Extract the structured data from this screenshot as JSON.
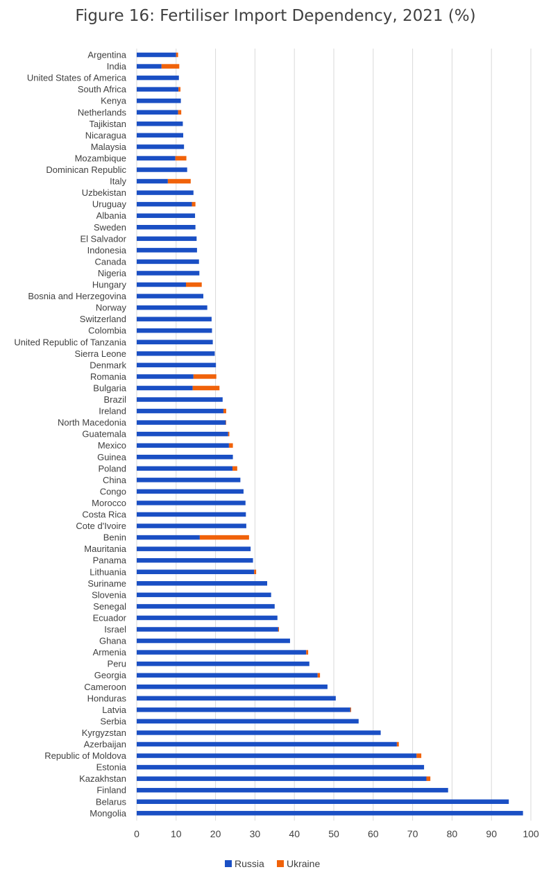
{
  "chart_data": {
    "type": "bar",
    "orientation": "horizontal",
    "stacked": true,
    "title": "Figure 16: Fertiliser Import Dependency, 2021 (%)",
    "xlim": [
      0,
      100
    ],
    "x_ticks": [
      0,
      10,
      20,
      30,
      40,
      50,
      60,
      70,
      80,
      90,
      100
    ],
    "grid": "vertical",
    "legend_position": "bottom",
    "colors": {
      "Russia": "#1a4fc4",
      "Ukraine": "#f0620a"
    },
    "categories": [
      "Argentina",
      "India",
      "United States of America",
      "South Africa",
      "Kenya",
      "Netherlands",
      "Tajikistan",
      "Nicaragua",
      "Malaysia",
      "Mozambique",
      "Dominican Republic",
      "Italy",
      "Uzbekistan",
      "Uruguay",
      "Albania",
      "Sweden",
      "El Salvador",
      "Indonesia",
      "Canada",
      "Nigeria",
      "Hungary",
      "Bosnia and Herzegovina",
      "Norway",
      "Switzerland",
      "Colombia",
      "United Republic of Tanzania",
      "Sierra Leone",
      "Denmark",
      "Romania",
      "Bulgaria",
      "Brazil",
      "Ireland",
      "North Macedonia",
      "Guatemala",
      "Mexico",
      "Guinea",
      "Poland",
      "China",
      "Congo",
      "Morocco",
      "Costa Rica",
      "Cote d'Ivoire",
      "Benin",
      "Mauritania",
      "Panama",
      "Lithuania",
      "Suriname",
      "Slovenia",
      "Senegal",
      "Ecuador",
      "Israel",
      "Ghana",
      "Armenia",
      "Peru",
      "Georgia",
      "Cameroon",
      "Honduras",
      "Latvia",
      "Serbia",
      "Kyrgyzstan",
      "Azerbaijan",
      "Republic of Moldova",
      "Estonia",
      "Kazakhstan",
      "Finland",
      "Belarus",
      "Mongolia"
    ],
    "series": [
      {
        "name": "Russia",
        "values": [
          10,
          6.3,
          10.7,
          10.6,
          11.2,
          10.5,
          11.7,
          11.8,
          12,
          9.8,
          12.8,
          7.9,
          14.4,
          14,
          14.8,
          14.9,
          15.2,
          15.3,
          15.8,
          15.9,
          12.5,
          16.9,
          17.9,
          19,
          19.1,
          19.3,
          19.8,
          20.1,
          14.4,
          14.2,
          21.8,
          22,
          22.6,
          23.2,
          23.4,
          24.4,
          24.3,
          26.3,
          27.1,
          27.6,
          27.7,
          27.8,
          16,
          28.9,
          29.5,
          29.8,
          33.1,
          34.1,
          35,
          35.7,
          35.9,
          38.9,
          43,
          43.8,
          45.9,
          48.4,
          50.5,
          54.2,
          56.3,
          61.9,
          66,
          71,
          72.9,
          73.5,
          79,
          94.4,
          98
        ]
      },
      {
        "name": "Ukraine",
        "values": [
          0.5,
          4.5,
          0,
          0.5,
          0,
          0.8,
          0,
          0,
          0,
          2.8,
          0,
          5.8,
          0,
          0.9,
          0,
          0,
          0,
          0,
          0,
          0,
          4,
          0,
          0,
          0,
          0,
          0,
          0,
          0,
          5.8,
          6.8,
          0,
          0.7,
          0.1,
          0.3,
          1,
          0,
          1.2,
          0,
          0,
          0,
          0,
          0,
          12.5,
          0,
          0,
          0.5,
          0,
          0,
          0,
          0,
          0.2,
          0,
          0.5,
          0,
          0.6,
          0,
          0,
          0.2,
          0,
          0,
          0.5,
          1.2,
          0,
          1,
          0,
          0,
          0
        ]
      }
    ]
  }
}
